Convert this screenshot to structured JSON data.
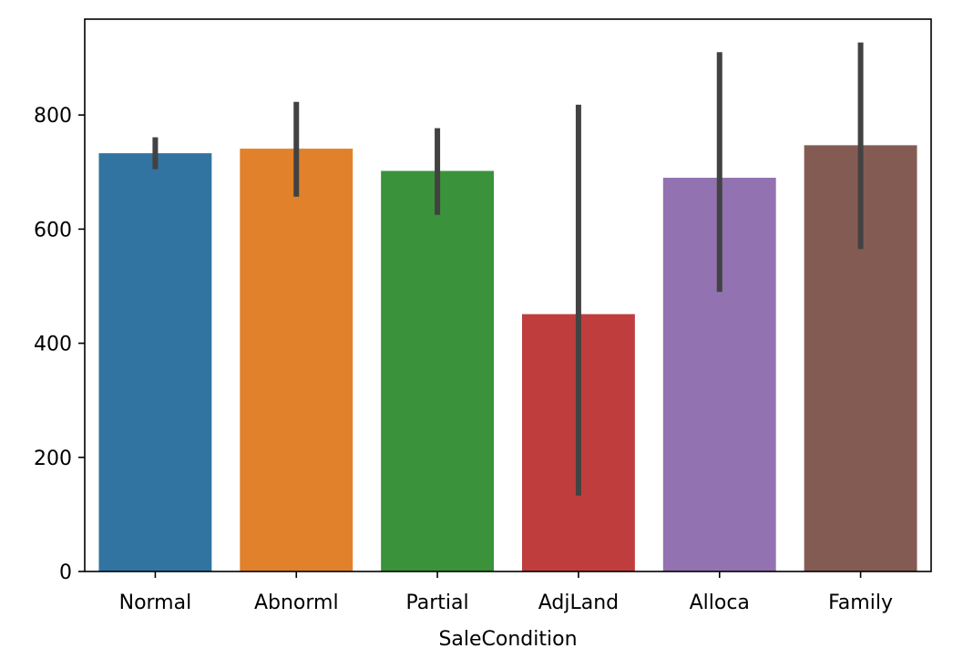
{
  "chart_data": {
    "type": "bar",
    "title": "",
    "xlabel": "SaleCondition",
    "ylabel": "",
    "categories": [
      "Normal",
      "Abnorml",
      "Partial",
      "AdjLand",
      "Alloca",
      "Family"
    ],
    "values": [
      733,
      741,
      702,
      451,
      690,
      747
    ],
    "error_low": [
      705,
      657,
      625,
      133,
      490,
      565
    ],
    "error_high": [
      761,
      823,
      777,
      818,
      910,
      927
    ],
    "colors": [
      "#3274a1",
      "#e1812c",
      "#3a923a",
      "#c03d3e",
      "#9372b2",
      "#845b53"
    ],
    "error_color": "#424242",
    "ylim": [
      0,
      968
    ],
    "yticks": [
      0,
      200,
      400,
      600,
      800
    ],
    "grid": false,
    "legend": "none"
  }
}
